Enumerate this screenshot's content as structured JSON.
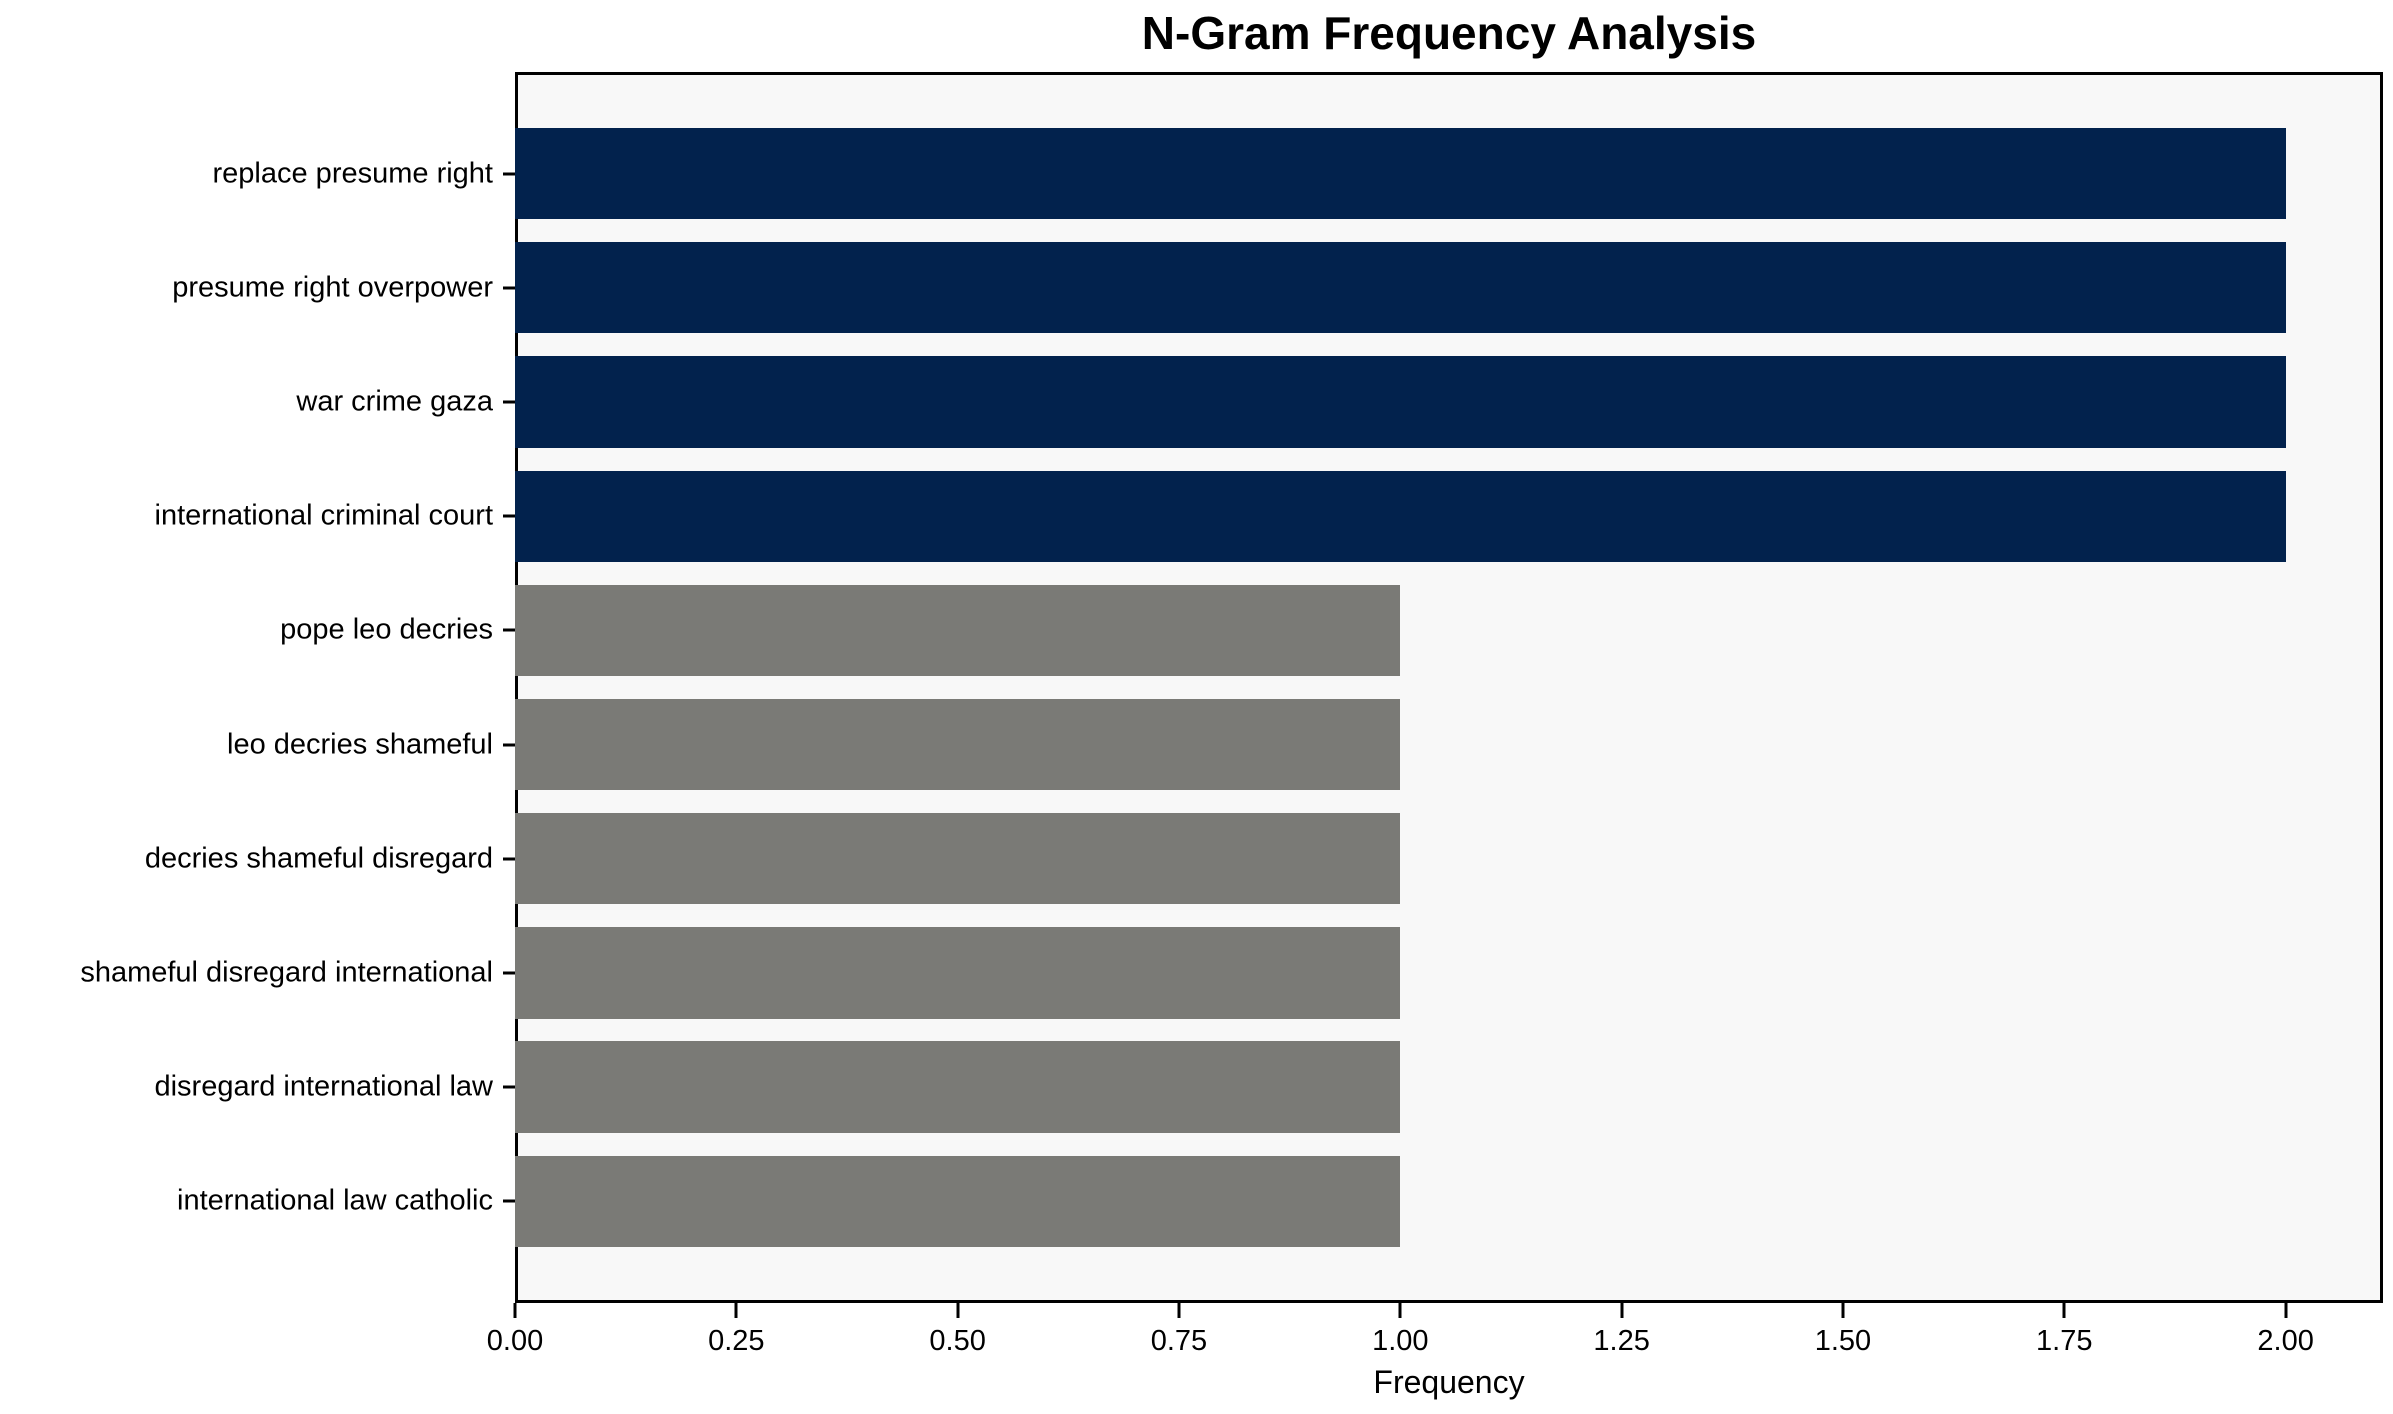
{
  "chart_data": {
    "type": "bar",
    "orientation": "horizontal",
    "title": "N-Gram Frequency Analysis",
    "xlabel": "Frequency",
    "ylabel": "",
    "categories": [
      "replace presume right",
      "presume right overpower",
      "war crime gaza",
      "international criminal court",
      "pope leo decries",
      "leo decries shameful",
      "decries shameful disregard",
      "shameful disregard international",
      "disregard international law",
      "international law catholic"
    ],
    "values": [
      2,
      2,
      2,
      2,
      1,
      1,
      1,
      1,
      1,
      1
    ],
    "bar_colors": [
      "#02224d",
      "#02224d",
      "#02224d",
      "#02224d",
      "#7a7a76",
      "#7a7a76",
      "#7a7a76",
      "#7a7a76",
      "#7a7a76",
      "#7a7a76"
    ],
    "xlim": [
      0,
      2.11
    ],
    "xticks": [
      {
        "value": 0.0,
        "label": "0.00"
      },
      {
        "value": 0.25,
        "label": "0.25"
      },
      {
        "value": 0.5,
        "label": "0.50"
      },
      {
        "value": 0.75,
        "label": "0.75"
      },
      {
        "value": 1.0,
        "label": "1.00"
      },
      {
        "value": 1.25,
        "label": "1.25"
      },
      {
        "value": 1.5,
        "label": "1.50"
      },
      {
        "value": 1.75,
        "label": "1.75"
      },
      {
        "value": 2.0,
        "label": "2.00"
      }
    ],
    "grid": false,
    "legend": null,
    "colors": {
      "highlight_bar": "#02224d",
      "default_bar": "#7a7a76",
      "plot_background": "#f8f8f8",
      "figure_background": "#ffffff",
      "axis": "#000000",
      "text": "#000000"
    }
  }
}
